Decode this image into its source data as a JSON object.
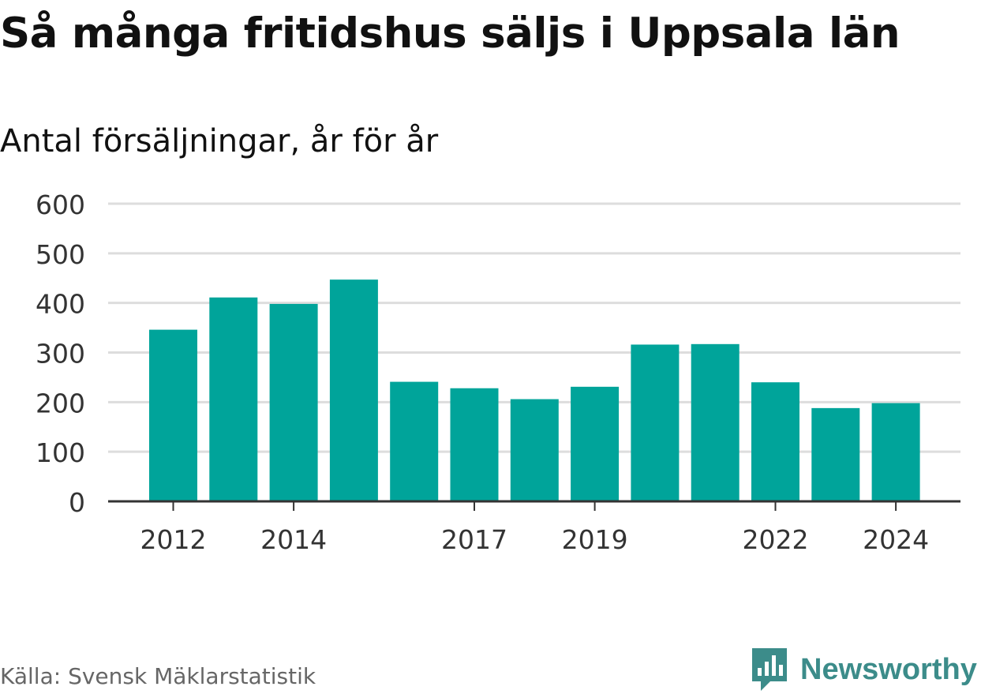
{
  "title": "Så många fritidshus säljs i Uppsala län",
  "subtitle": "Antal försäljningar, år för år",
  "source": "Källa: Svensk Mäklarstatistik",
  "brand": "Newsworthy",
  "colors": {
    "bar": "#00a49a",
    "grid": "#dddddd",
    "axis": "#333333",
    "brand": "#3c8c8a"
  },
  "chart_data": {
    "type": "bar",
    "categories": [
      "2012",
      "2013",
      "2014",
      "2015",
      "2016",
      "2017",
      "2018",
      "2019",
      "2020",
      "2021",
      "2022",
      "2023",
      "2024"
    ],
    "values": [
      346,
      411,
      398,
      447,
      241,
      228,
      206,
      231,
      316,
      317,
      240,
      188,
      198
    ],
    "x_tick_labels": [
      "2012",
      "2014",
      "2017",
      "2019",
      "2022",
      "2024"
    ],
    "y_ticks": [
      0,
      100,
      200,
      300,
      400,
      500,
      600
    ],
    "ylim": [
      0,
      600
    ],
    "grid": true,
    "legend": "none"
  }
}
